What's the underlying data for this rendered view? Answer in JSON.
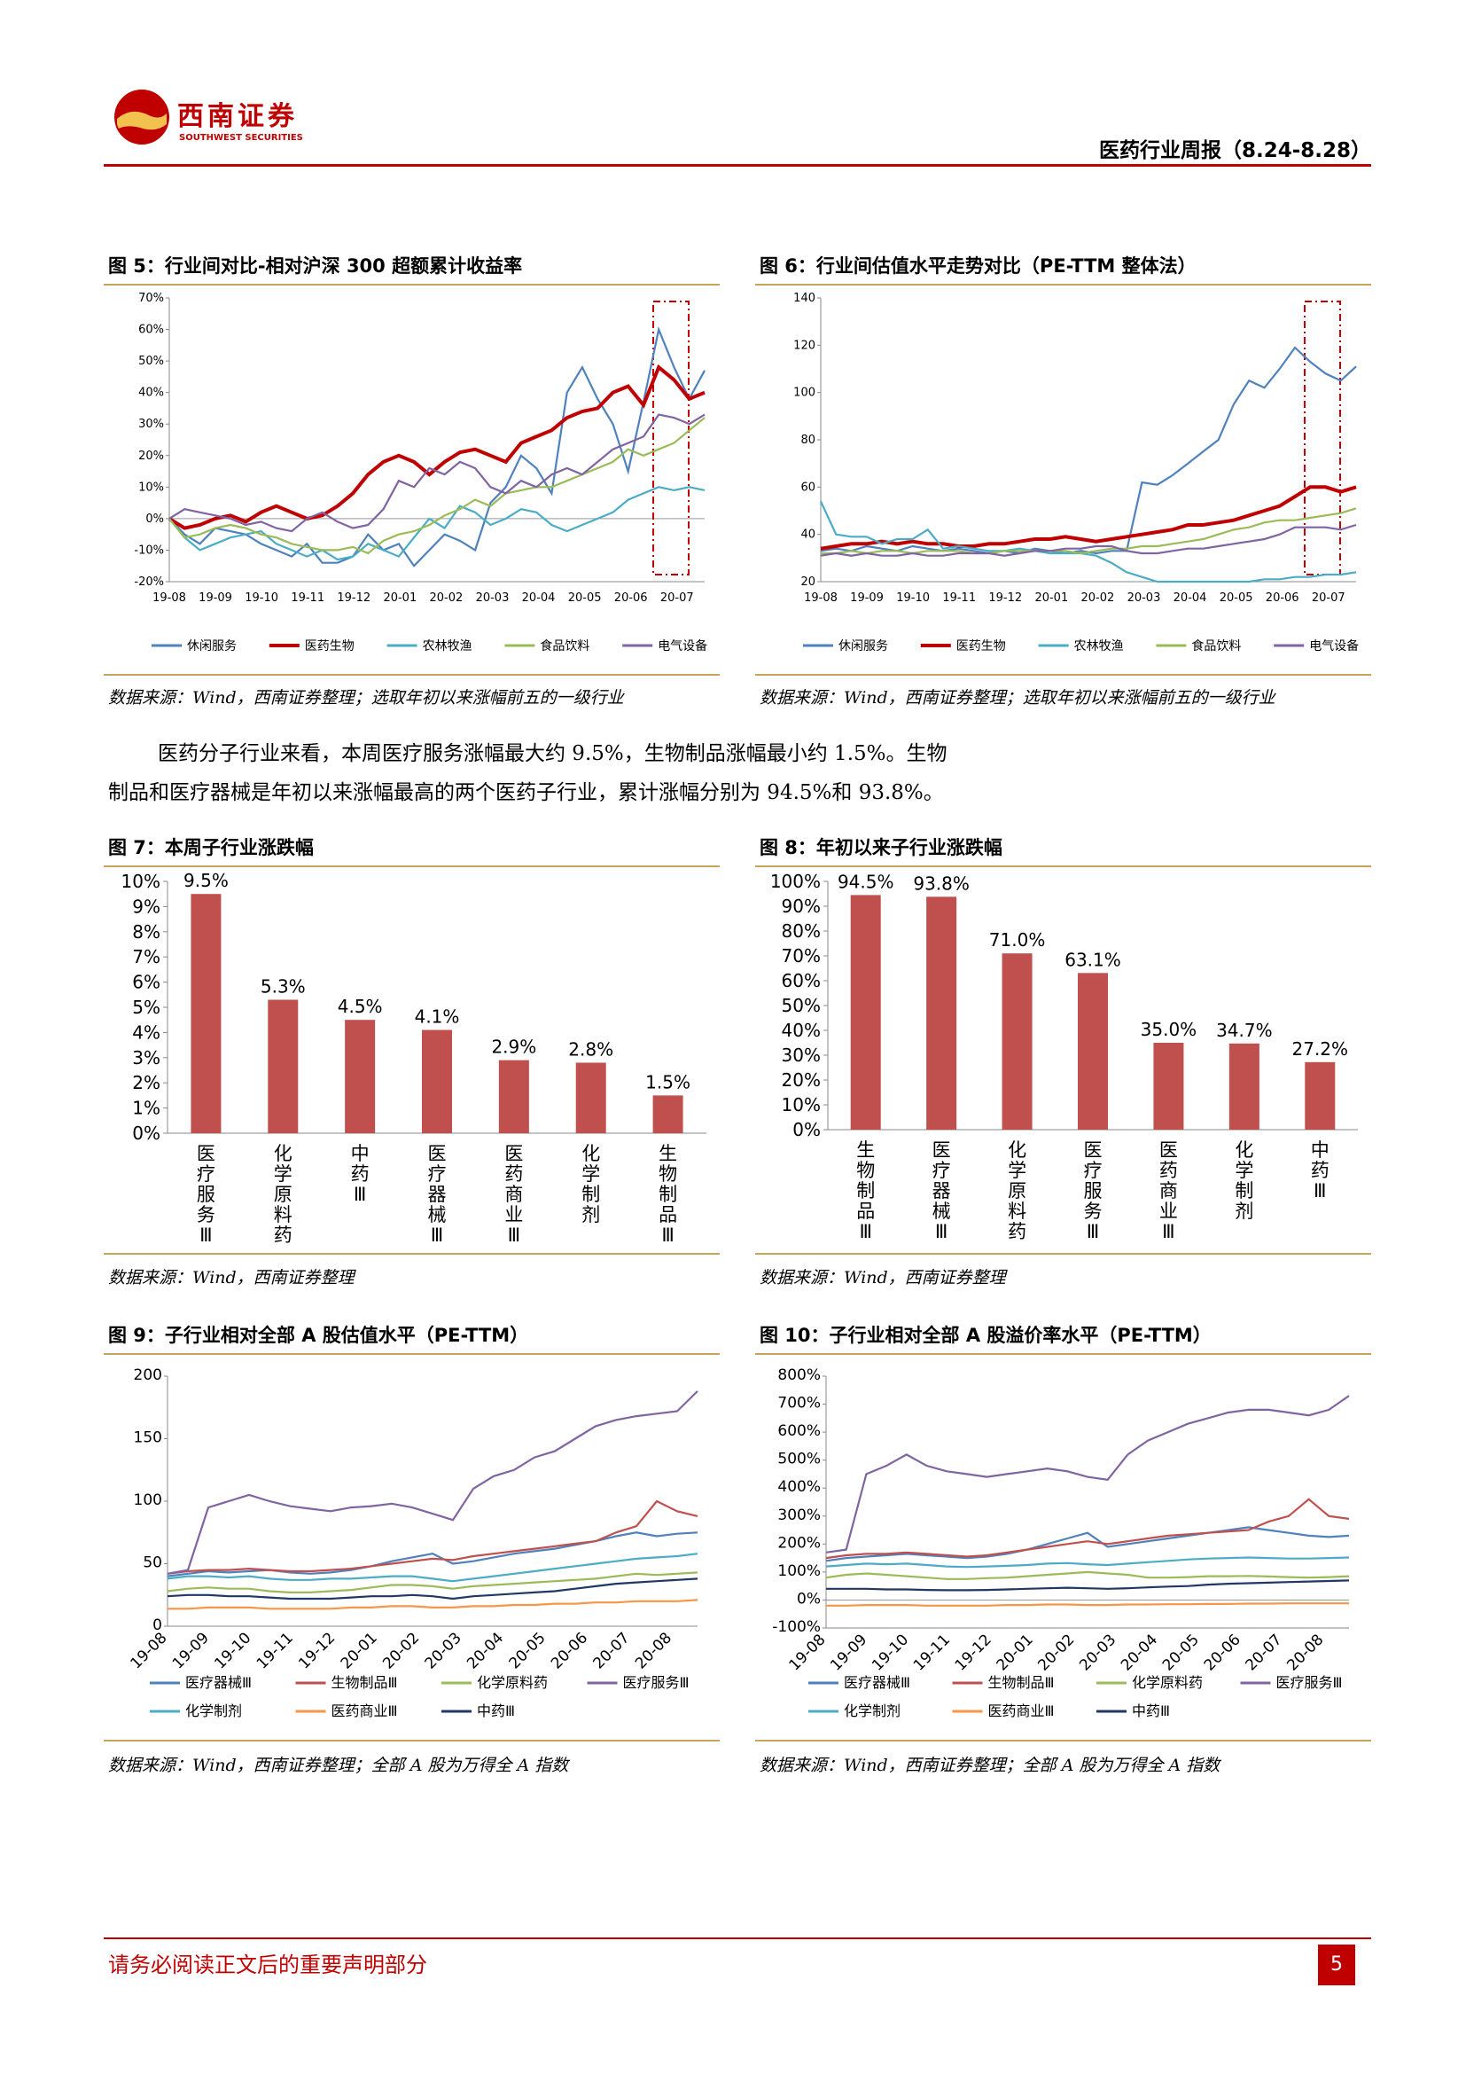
{
  "header": {
    "logo_cn": "西南证券",
    "logo_en": "SOUTHWEST SECURITIES",
    "report_title": "医药行业周报（8.24-8.28）"
  },
  "colors": {
    "accent": "#c00000",
    "rule": "#c9a25c",
    "bar": "#c0504d"
  },
  "fig5": {
    "title": "图 5：行业间对比-相对沪深 300 超额累计收益率",
    "source": "数据来源：Wind，西南证券整理；选取年初以来涨幅前五的一级行业",
    "chart_data": {
      "type": "line",
      "x_labels": [
        "19-08",
        "19-09",
        "19-10",
        "19-11",
        "19-12",
        "20-01",
        "20-02",
        "20-03",
        "20-04",
        "20-05",
        "20-06",
        "20-07"
      ],
      "y_ticks": [
        "70%",
        "60%",
        "50%",
        "40%",
        "30%",
        "20%",
        "10%",
        "0%",
        "-10%",
        "-20%"
      ],
      "ylim": [
        -20,
        70
      ],
      "legend": [
        "休闲服务",
        "医药生物",
        "农林牧渔",
        "食品饮料",
        "电气设备"
      ],
      "series": [
        {
          "name": "休闲服务",
          "color": "#4f81bd",
          "values": [
            0,
            -5,
            -8,
            -3,
            -4,
            -5,
            -8,
            -10,
            -12,
            -8,
            -14,
            -14,
            -12,
            -5,
            -10,
            -8,
            -15,
            -10,
            -5,
            -7,
            -10,
            5,
            10,
            20,
            16,
            8,
            40,
            48,
            38,
            30,
            15,
            37,
            60,
            48,
            38,
            47
          ]
        },
        {
          "name": "医药生物",
          "color": "#c00000",
          "values": [
            0,
            -3,
            -2,
            0,
            1,
            -1,
            2,
            4,
            2,
            0,
            1,
            4,
            8,
            14,
            18,
            20,
            18,
            14,
            18,
            21,
            22,
            20,
            18,
            24,
            26,
            28,
            32,
            34,
            35,
            40,
            42,
            36,
            48,
            44,
            38,
            40
          ]
        },
        {
          "name": "农林牧渔",
          "color": "#4bacc6",
          "values": [
            0,
            -6,
            -10,
            -8,
            -6,
            -5,
            -4,
            -8,
            -10,
            -12,
            -10,
            -13,
            -12,
            -8,
            -10,
            -12,
            -6,
            0,
            -3,
            4,
            2,
            -2,
            0,
            3,
            2,
            -2,
            -4,
            -2,
            0,
            2,
            6,
            8,
            10,
            9,
            10,
            9
          ]
        },
        {
          "name": "食品饮料",
          "color": "#9bbb59",
          "values": [
            0,
            -6,
            -5,
            -3,
            -2,
            -3,
            -5,
            -6,
            -8,
            -9,
            -10,
            -10,
            -9,
            -11,
            -7,
            -5,
            -4,
            -2,
            1,
            3,
            6,
            4,
            8,
            9,
            10,
            10,
            12,
            14,
            16,
            18,
            22,
            20,
            22,
            24,
            28,
            32
          ]
        },
        {
          "name": "电气设备",
          "color": "#8064a2",
          "values": [
            0,
            3,
            2,
            1,
            0,
            -2,
            -1,
            -3,
            -4,
            0,
            2,
            -1,
            -3,
            -2,
            3,
            12,
            10,
            16,
            14,
            18,
            16,
            10,
            8,
            12,
            10,
            14,
            16,
            14,
            18,
            22,
            24,
            26,
            33,
            32,
            30,
            33
          ]
        }
      ],
      "highlight_box": "last-period"
    }
  },
  "fig6": {
    "title": "图 6：行业间估值水平走势对比（PE-TTM 整体法）",
    "source": "数据来源：Wind，西南证券整理；选取年初以来涨幅前五的一级行业",
    "chart_data": {
      "type": "line",
      "x_labels": [
        "19-08",
        "19-09",
        "19-10",
        "19-11",
        "19-12",
        "20-01",
        "20-02",
        "20-03",
        "20-04",
        "20-05",
        "20-06",
        "20-07"
      ],
      "y_ticks": [
        "140",
        "120",
        "100",
        "80",
        "60",
        "40",
        "20"
      ],
      "ylim": [
        20,
        140
      ],
      "legend": [
        "休闲服务",
        "医药生物",
        "农林牧渔",
        "食品饮料",
        "电气设备"
      ],
      "series": [
        {
          "name": "休闲服务",
          "color": "#4f81bd",
          "values": [
            33,
            34,
            33,
            35,
            34,
            33,
            35,
            34,
            33,
            34,
            33,
            32,
            33,
            32,
            34,
            33,
            32,
            33,
            32,
            33,
            33,
            62,
            61,
            65,
            70,
            75,
            80,
            95,
            105,
            102,
            110,
            119,
            113,
            108,
            105,
            111
          ]
        },
        {
          "name": "医药生物",
          "color": "#c00000",
          "values": [
            34,
            35,
            36,
            36,
            37,
            36,
            37,
            36,
            36,
            35,
            35,
            36,
            36,
            37,
            38,
            38,
            39,
            38,
            37,
            38,
            39,
            40,
            41,
            42,
            44,
            44,
            45,
            46,
            48,
            50,
            52,
            56,
            60,
            60,
            58,
            60
          ]
        },
        {
          "name": "农林牧渔",
          "color": "#4bacc6",
          "values": [
            54,
            40,
            39,
            39,
            36,
            38,
            38,
            42,
            34,
            35,
            34,
            33,
            33,
            34,
            33,
            32,
            32,
            32,
            31,
            28,
            24,
            22,
            20,
            20,
            20,
            20,
            20,
            20,
            20,
            21,
            21,
            22,
            22,
            23,
            23,
            24
          ]
        },
        {
          "name": "食品饮料",
          "color": "#9bbb59",
          "values": [
            32,
            32,
            33,
            32,
            33,
            33,
            32,
            33,
            33,
            33,
            32,
            32,
            33,
            33,
            33,
            33,
            33,
            32,
            33,
            34,
            34,
            35,
            35,
            36,
            37,
            38,
            40,
            42,
            43,
            45,
            46,
            46,
            47,
            48,
            49,
            51
          ]
        },
        {
          "name": "电气设备",
          "color": "#8064a2",
          "values": [
            31,
            32,
            31,
            32,
            31,
            31,
            32,
            31,
            31,
            32,
            32,
            32,
            31,
            32,
            33,
            33,
            34,
            34,
            35,
            35,
            33,
            32,
            32,
            33,
            34,
            34,
            35,
            36,
            37,
            38,
            40,
            43,
            43,
            43,
            42,
            44
          ]
        }
      ],
      "highlight_box": "last-period"
    }
  },
  "paragraph": {
    "line1": "医药分子行业来看，本周医疗服务涨幅最大约 9.5%，生物制品涨幅最小约 1.5%。生物",
    "line2": "制品和医疗器械是年初以来涨幅最高的两个医药子行业，累计涨幅分别为 94.5%和 93.8%。"
  },
  "fig7": {
    "title": "图 7：本周子行业涨跌幅",
    "source": "数据来源：Wind，西南证券整理",
    "chart_data": {
      "type": "bar",
      "categories": [
        "医疗服务Ⅲ",
        "化学原料药",
        "中药Ⅲ",
        "医疗器械Ⅲ",
        "医药商业Ⅲ",
        "化学制剂",
        "生物制品Ⅲ"
      ],
      "values": [
        9.5,
        5.3,
        4.5,
        4.1,
        2.9,
        2.8,
        1.5
      ],
      "labels": [
        "9.5%",
        "5.3%",
        "4.5%",
        "4.1%",
        "2.9%",
        "2.8%",
        "1.5%"
      ],
      "y_ticks": [
        "10%",
        "9%",
        "8%",
        "7%",
        "6%",
        "5%",
        "4%",
        "3%",
        "2%",
        "1%",
        "0%"
      ],
      "ylim": [
        0,
        10
      ]
    }
  },
  "fig8": {
    "title": "图 8：年初以来子行业涨跌幅",
    "source": "数据来源：Wind，西南证券整理",
    "chart_data": {
      "type": "bar",
      "categories": [
        "生物制品Ⅲ",
        "医疗器械Ⅲ",
        "化学原料药",
        "医疗服务Ⅲ",
        "医药商业Ⅲ",
        "化学制剂",
        "中药Ⅲ"
      ],
      "values": [
        94.5,
        93.8,
        71.0,
        63.1,
        35.0,
        34.7,
        27.2
      ],
      "labels": [
        "94.5%",
        "93.8%",
        "71.0%",
        "63.1%",
        "35.0%",
        "34.7%",
        "27.2%"
      ],
      "y_ticks": [
        "100%",
        "90%",
        "80%",
        "70%",
        "60%",
        "50%",
        "40%",
        "30%",
        "20%",
        "10%",
        "0%"
      ],
      "ylim": [
        0,
        100
      ]
    }
  },
  "fig9": {
    "title": "图 9：子行业相对全部 A 股估值水平（PE-TTM）",
    "source": "数据来源：Wind，西南证券整理；全部 A 股为万得全 A 指数",
    "chart_data": {
      "type": "line",
      "x_labels": [
        "19-08",
        "19-09",
        "19-10",
        "19-11",
        "19-12",
        "20-01",
        "20-02",
        "20-03",
        "20-04",
        "20-05",
        "20-06",
        "20-07",
        "20-08"
      ],
      "y_ticks": [
        "200",
        "150",
        "100",
        "50",
        "0"
      ],
      "ylim": [
        0,
        200
      ],
      "legend": [
        "医疗器械Ⅲ",
        "生物制品Ⅲ",
        "化学原料药",
        "医疗服务Ⅲ",
        "化学制剂",
        "医药商业Ⅲ",
        "中药Ⅲ"
      ],
      "series": [
        {
          "name": "医疗器械Ⅲ",
          "color": "#4f81bd",
          "values": [
            40,
            42,
            44,
            43,
            44,
            45,
            43,
            42,
            43,
            45,
            48,
            52,
            55,
            58,
            50,
            52,
            55,
            58,
            60,
            62,
            65,
            68,
            72,
            75,
            72,
            74,
            75
          ]
        },
        {
          "name": "生物制品Ⅲ",
          "color": "#c0504d",
          "values": [
            42,
            44,
            45,
            45,
            46,
            45,
            44,
            44,
            45,
            46,
            48,
            50,
            52,
            54,
            53,
            56,
            58,
            60,
            62,
            64,
            66,
            68,
            75,
            80,
            100,
            92,
            88
          ]
        },
        {
          "name": "化学原料药",
          "color": "#9bbb59",
          "values": [
            28,
            30,
            31,
            30,
            30,
            28,
            27,
            27,
            28,
            29,
            31,
            33,
            33,
            32,
            30,
            32,
            33,
            34,
            35,
            36,
            37,
            38,
            40,
            42,
            41,
            42,
            43
          ]
        },
        {
          "name": "医疗服务Ⅲ",
          "color": "#8064a2",
          "values": [
            42,
            45,
            95,
            100,
            105,
            100,
            96,
            94,
            92,
            95,
            96,
            98,
            95,
            90,
            85,
            110,
            120,
            125,
            135,
            140,
            150,
            160,
            165,
            168,
            170,
            172,
            188
          ]
        },
        {
          "name": "化学制剂",
          "color": "#4bacc6",
          "values": [
            38,
            40,
            40,
            39,
            40,
            38,
            37,
            37,
            38,
            38,
            39,
            40,
            40,
            38,
            36,
            38,
            40,
            42,
            44,
            46,
            48,
            50,
            52,
            54,
            55,
            56,
            58
          ]
        },
        {
          "name": "医药商业Ⅲ",
          "color": "#f79646",
          "values": [
            14,
            14,
            15,
            15,
            15,
            14,
            14,
            14,
            14,
            15,
            15,
            16,
            16,
            15,
            15,
            16,
            16,
            17,
            17,
            18,
            18,
            19,
            19,
            20,
            20,
            20,
            21
          ]
        },
        {
          "name": "中药Ⅲ",
          "color": "#1f3864",
          "values": [
            24,
            25,
            25,
            24,
            24,
            23,
            22,
            22,
            22,
            23,
            24,
            24,
            25,
            24,
            22,
            24,
            25,
            26,
            27,
            28,
            30,
            32,
            34,
            35,
            36,
            37,
            38
          ]
        }
      ]
    }
  },
  "fig10": {
    "title": "图 10：子行业相对全部 A 股溢价率水平（PE-TTM）",
    "source": "数据来源：Wind，西南证券整理；全部 A 股为万得全 A 指数",
    "chart_data": {
      "type": "line",
      "x_labels": [
        "19-08",
        "19-09",
        "19-10",
        "19-11",
        "19-12",
        "20-01",
        "20-02",
        "20-03",
        "20-04",
        "20-05",
        "20-06",
        "20-07",
        "20-08"
      ],
      "y_ticks": [
        "800%",
        "700%",
        "600%",
        "500%",
        "400%",
        "300%",
        "200%",
        "100%",
        "0%",
        "-100%"
      ],
      "ylim": [
        -100,
        800
      ],
      "legend": [
        "医疗器械Ⅲ",
        "生物制品Ⅲ",
        "化学原料药",
        "医疗服务Ⅲ",
        "化学制剂",
        "医药商业Ⅲ",
        "中药Ⅲ"
      ],
      "series": [
        {
          "name": "医疗器械Ⅲ",
          "color": "#4f81bd",
          "values": [
            140,
            150,
            155,
            160,
            165,
            160,
            155,
            150,
            155,
            165,
            180,
            200,
            220,
            240,
            190,
            200,
            210,
            220,
            230,
            240,
            250,
            260,
            250,
            240,
            230,
            225,
            230
          ]
        },
        {
          "name": "生物制品Ⅲ",
          "color": "#c0504d",
          "values": [
            150,
            160,
            165,
            165,
            170,
            165,
            160,
            155,
            160,
            170,
            180,
            190,
            200,
            210,
            200,
            210,
            220,
            230,
            235,
            240,
            245,
            250,
            280,
            300,
            360,
            300,
            290
          ]
        },
        {
          "name": "化学原料药",
          "color": "#9bbb59",
          "values": [
            80,
            90,
            95,
            90,
            85,
            80,
            75,
            75,
            78,
            80,
            85,
            90,
            95,
            100,
            95,
            90,
            80,
            80,
            82,
            85,
            85,
            86,
            84,
            82,
            80,
            82,
            85
          ]
        },
        {
          "name": "医疗服务Ⅲ",
          "color": "#8064a2",
          "values": [
            170,
            180,
            450,
            480,
            520,
            480,
            460,
            450,
            440,
            450,
            460,
            470,
            460,
            440,
            430,
            520,
            570,
            600,
            630,
            650,
            670,
            680,
            680,
            670,
            660,
            680,
            730
          ]
        },
        {
          "name": "化学制剂",
          "color": "#4bacc6",
          "values": [
            120,
            125,
            130,
            128,
            130,
            125,
            120,
            118,
            120,
            122,
            125,
            130,
            132,
            128,
            125,
            130,
            135,
            140,
            145,
            148,
            150,
            152,
            150,
            148,
            148,
            150,
            152
          ]
        },
        {
          "name": "医药商业Ⅲ",
          "color": "#f79646",
          "values": [
            -20,
            -20,
            -18,
            -18,
            -18,
            -20,
            -20,
            -20,
            -20,
            -18,
            -18,
            -16,
            -16,
            -18,
            -18,
            -16,
            -16,
            -15,
            -15,
            -14,
            -14,
            -13,
            -13,
            -12,
            -12,
            -12,
            -12
          ]
        },
        {
          "name": "中药Ⅲ",
          "color": "#1f3864",
          "values": [
            40,
            40,
            40,
            38,
            38,
            36,
            35,
            35,
            36,
            38,
            40,
            42,
            44,
            42,
            40,
            42,
            45,
            48,
            50,
            55,
            58,
            60,
            62,
            64,
            66,
            68,
            70
          ]
        }
      ]
    }
  },
  "footer": {
    "disclaimer": "请务必阅读正文后的重要声明部分",
    "page": "5"
  }
}
